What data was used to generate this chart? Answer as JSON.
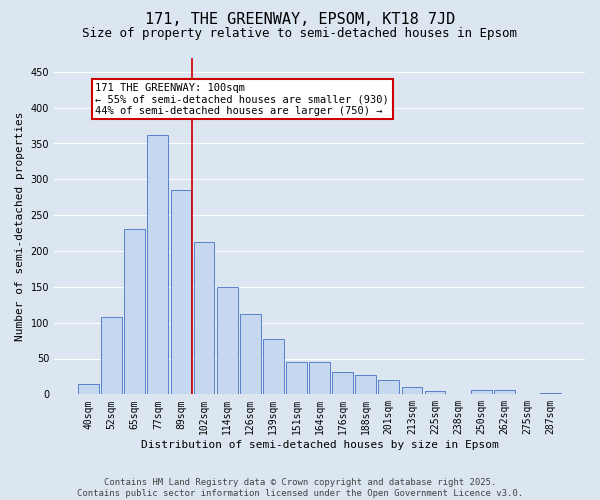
{
  "title": "171, THE GREENWAY, EPSOM, KT18 7JD",
  "subtitle": "Size of property relative to semi-detached houses in Epsom",
  "xlabel": "Distribution of semi-detached houses by size in Epsom",
  "ylabel": "Number of semi-detached properties",
  "categories": [
    "40sqm",
    "52sqm",
    "65sqm",
    "77sqm",
    "89sqm",
    "102sqm",
    "114sqm",
    "126sqm",
    "139sqm",
    "151sqm",
    "164sqm",
    "176sqm",
    "188sqm",
    "201sqm",
    "213sqm",
    "225sqm",
    "238sqm",
    "250sqm",
    "262sqm",
    "275sqm",
    "287sqm"
  ],
  "values": [
    15,
    108,
    230,
    362,
    285,
    213,
    150,
    112,
    77,
    45,
    45,
    31,
    27,
    20,
    10,
    5,
    1,
    6,
    6,
    1,
    2
  ],
  "bar_color": "#c5d8f0",
  "bar_edge_color": "#4472c4",
  "vline_index": 5,
  "annotation_title": "171 THE GREENWAY: 100sqm",
  "annotation_line1": "← 55% of semi-detached houses are smaller (930)",
  "annotation_line2": "44% of semi-detached houses are larger (750) →",
  "annotation_box_color": "#ffffff",
  "annotation_box_edge": "#cc0000",
  "vline_color": "#cc0000",
  "footer_line1": "Contains HM Land Registry data © Crown copyright and database right 2025.",
  "footer_line2": "Contains public sector information licensed under the Open Government Licence v3.0.",
  "ylim": [
    0,
    470
  ],
  "yticks": [
    0,
    50,
    100,
    150,
    200,
    250,
    300,
    350,
    400,
    450
  ],
  "background_color": "#dce6f1",
  "grid_color": "#ffffff",
  "title_fontsize": 11,
  "subtitle_fontsize": 9,
  "axis_label_fontsize": 8,
  "tick_fontsize": 7,
  "annotation_fontsize": 7.5,
  "footer_fontsize": 6.5
}
